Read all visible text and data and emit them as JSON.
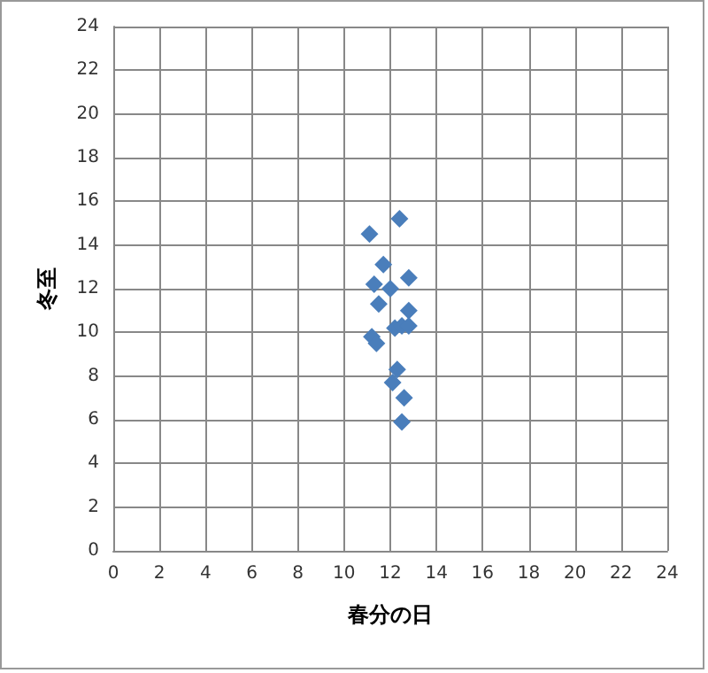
{
  "chart_data": {
    "type": "scatter",
    "xlabel": "春分の日",
    "ylabel": "冬至",
    "x": [
      11.1,
      12.4,
      11.7,
      11.3,
      12.8,
      12.0,
      11.5,
      12.8,
      12.2,
      12.5,
      12.8,
      11.2,
      11.4,
      12.3,
      12.1,
      12.6,
      12.5
    ],
    "series": [
      {
        "color": "#4a7ebb",
        "values": [
          14.5,
          15.2,
          13.1,
          12.2,
          12.5,
          12.0,
          11.3,
          11.0,
          10.2,
          10.3,
          10.3,
          9.8,
          9.5,
          8.3,
          7.7,
          7.0,
          5.9
        ]
      }
    ],
    "xlim": [
      0,
      24
    ],
    "xticks": [
      0,
      2,
      4,
      6,
      8,
      10,
      12,
      14,
      16,
      18,
      20,
      22,
      24
    ],
    "ylim": [
      0,
      24
    ],
    "yticks": [
      0,
      2,
      4,
      6,
      8,
      10,
      12,
      14,
      16,
      18,
      20,
      22,
      24
    ],
    "grid": true,
    "marker": "diamond"
  }
}
